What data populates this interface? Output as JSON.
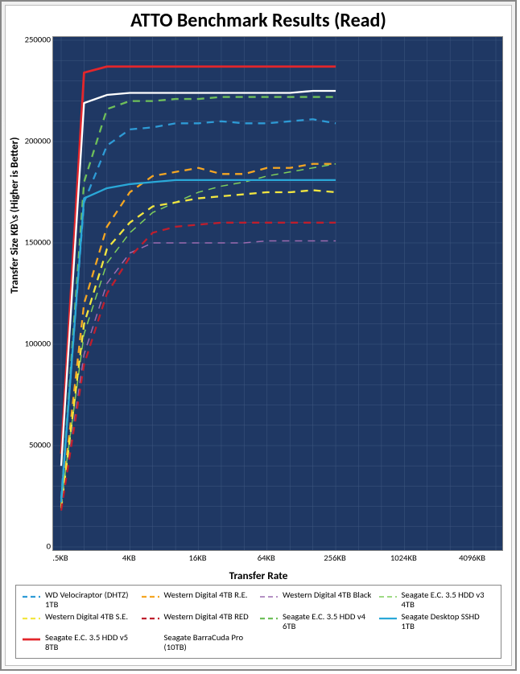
{
  "chart": {
    "type": "line",
    "title": "ATTO Benchmark Results (Read)",
    "title_fontsize": 18,
    "ylabel": "Transfer Size   KB\\s   (Higher is Better)",
    "xlabel": "Transfer Rate",
    "label_fontsize": 10,
    "tick_fontsize": 8,
    "plot_background": "#1f3864",
    "outer_background": "#ffffff",
    "grid_color": "#3f5880",
    "grid_line_width": 0.5,
    "axis_border_color": "#888888",
    "ylim": [
      0,
      250000
    ],
    "ytick_step": 50000,
    "y_minor_step": 10000,
    "x_categories": [
      ".5KB",
      "4KB",
      "16KB",
      "64KB",
      "256KB",
      "1024KB",
      "4096KB"
    ],
    "x_minor_between": 2,
    "x_post_minor": 1,
    "series": [
      {
        "name": "WD Velociraptor (DHTZ) 1TB",
        "color": "#2e9bd6",
        "dashed": true,
        "line_width": 2.3,
        "values": [
          24000,
          170000,
          198000,
          206000,
          207000,
          209000,
          209000,
          210000,
          209000,
          209000,
          210000,
          211000,
          209000
        ]
      },
      {
        "name": "Western Digital 4TB R.E.",
        "color": "#f5a623",
        "dashed": true,
        "line_width": 2.3,
        "values": [
          20000,
          120000,
          158000,
          175000,
          183000,
          185000,
          187000,
          184000,
          184000,
          187000,
          187000,
          189000,
          189000
        ]
      },
      {
        "name": "Western Digital 4TB Black",
        "color": "#9c6bb0",
        "dashed": true,
        "line_width": 1.5,
        "values": [
          18000,
          95000,
          130000,
          145000,
          150000,
          150000,
          150000,
          150000,
          150000,
          151000,
          151000,
          151000,
          151000
        ]
      },
      {
        "name": "Seagate E.C. 3.5  HDD v3 4TB",
        "color": "#7fce5b",
        "dashed": true,
        "line_width": 1.5,
        "values": [
          22000,
          105000,
          140000,
          155000,
          165000,
          170000,
          175000,
          178000,
          180000,
          183000,
          185000,
          187000,
          189000
        ]
      },
      {
        "name": "Western Digital 4TB S.E.",
        "color": "#f2e640",
        "dashed": true,
        "line_width": 2.3,
        "values": [
          19000,
          110000,
          147000,
          160000,
          168000,
          170000,
          172000,
          173000,
          174000,
          175000,
          175000,
          176000,
          175000
        ]
      },
      {
        "name": "Western Digital 4TB RED",
        "color": "#be1e2d",
        "dashed": true,
        "line_width": 2.3,
        "values": [
          18000,
          90000,
          125000,
          143000,
          155000,
          158000,
          159000,
          160000,
          160000,
          160000,
          160000,
          160000,
          160000
        ]
      },
      {
        "name": "Seagate E.C. 3.5 HDD v4 6TB",
        "color": "#6fbf5a",
        "dashed": true,
        "line_width": 2.3,
        "values": [
          22000,
          180000,
          216000,
          220000,
          220000,
          221000,
          221000,
          222000,
          222000,
          222000,
          222000,
          222000,
          222000
        ]
      },
      {
        "name": "Seagate Desktop SSHD 1TB",
        "color": "#2aa8d8",
        "dashed": false,
        "line_width": 2.3,
        "values": [
          22000,
          172000,
          177000,
          179000,
          180000,
          181000,
          181000,
          181000,
          181000,
          181000,
          181000,
          181000,
          181000
        ]
      },
      {
        "name": "Seagate E.C. 3.5 HDD v5 8TB",
        "color": "#e3262b",
        "dashed": false,
        "line_width": 2.8,
        "values": [
          46000,
          234000,
          237000,
          237000,
          237000,
          237000,
          237000,
          237000,
          237000,
          237000,
          237000,
          237000,
          237000
        ]
      },
      {
        "name": "Seagate BarraCuda Pro (10TB)",
        "color": "#ffffff",
        "dashed": false,
        "line_width": 2.3,
        "values": [
          40000,
          219000,
          223000,
          224000,
          224000,
          224000,
          224000,
          224000,
          224000,
          224000,
          224000,
          225000,
          225000
        ]
      }
    ]
  },
  "legend": {
    "columns": 4,
    "border_color": "#888888",
    "fontsize": 8
  }
}
